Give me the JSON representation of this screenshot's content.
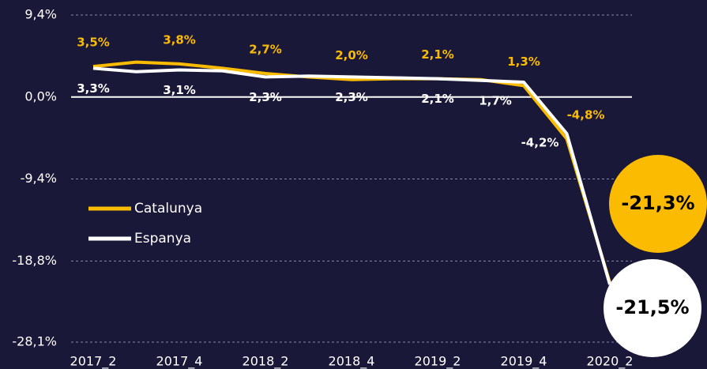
{
  "chart_data": {
    "type": "line",
    "categories": [
      "2017_2",
      null,
      "2017_4",
      null,
      "2018_2",
      null,
      "2018_4",
      null,
      "2019_2",
      null,
      "2019_4",
      null,
      "2020_2"
    ],
    "series": [
      {
        "name": "Catalunya",
        "color": "#fbbb00",
        "values": [
          3.5,
          4.0,
          3.8,
          3.3,
          2.7,
          2.3,
          2.0,
          2.1,
          2.1,
          2.0,
          1.3,
          -4.8,
          -21.3
        ],
        "value_labels": [
          "3,5%",
          null,
          "3,8%",
          null,
          "2,7%",
          null,
          "2,0%",
          null,
          "2,1%",
          null,
          "1,3%",
          "-4,8%",
          "-21,3%"
        ]
      },
      {
        "name": "Espanya",
        "color": "#ffffff",
        "values": [
          3.3,
          2.9,
          3.1,
          3.0,
          2.3,
          2.4,
          2.3,
          2.2,
          2.1,
          1.9,
          1.7,
          -4.2,
          -21.5
        ],
        "value_labels": [
          "3,3%",
          null,
          "3,1%",
          null,
          "2,3%",
          null,
          "2,3%",
          null,
          "2,1%",
          null,
          "1,7%",
          "-4,2%",
          "-21,5%"
        ]
      }
    ],
    "ylim": [
      -28.1,
      9.4
    ],
    "yticks": [
      {
        "value": 9.4,
        "label": "9,4%"
      },
      {
        "value": 0,
        "label": "0,0%"
      },
      {
        "value": -9.4,
        "label": "-9,4%"
      },
      {
        "value": -18.8,
        "label": "-18,8%"
      },
      {
        "value": -28.1,
        "label": "-28,1%"
      }
    ],
    "grid": true,
    "legend": "left"
  }
}
